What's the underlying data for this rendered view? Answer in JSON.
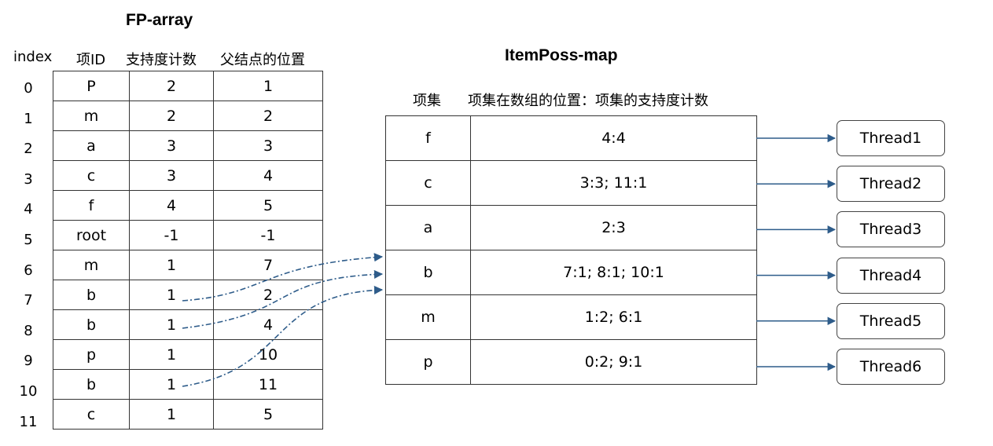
{
  "fp_array": {
    "title": "FP-array",
    "headers": [
      "index",
      "项ID",
      "支持度计数",
      "父结点的位置"
    ],
    "rows": [
      {
        "index": "0",
        "item": "P",
        "count": "2",
        "parent": "1"
      },
      {
        "index": "1",
        "item": "m",
        "count": "2",
        "parent": "2"
      },
      {
        "index": "2",
        "item": "a",
        "count": "3",
        "parent": "3"
      },
      {
        "index": "3",
        "item": "c",
        "count": "3",
        "parent": "4"
      },
      {
        "index": "4",
        "item": "f",
        "count": "4",
        "parent": "5"
      },
      {
        "index": "5",
        "item": "root",
        "count": "-1",
        "parent": "-1"
      },
      {
        "index": "6",
        "item": "m",
        "count": "1",
        "parent": "7"
      },
      {
        "index": "7",
        "item": "b",
        "count": "1",
        "parent": "2"
      },
      {
        "index": "8",
        "item": "b",
        "count": "1",
        "parent": "4"
      },
      {
        "index": "9",
        "item": "p",
        "count": "1",
        "parent": "10"
      },
      {
        "index": "10",
        "item": "b",
        "count": "1",
        "parent": "11"
      },
      {
        "index": "11",
        "item": "c",
        "count": "1",
        "parent": "5"
      }
    ]
  },
  "itemposs_map": {
    "title": "ItemPoss-map",
    "header_item": "项集",
    "header_positions": "项集在数组的位置：项集的支持度计数",
    "rows": [
      {
        "item": "f",
        "positions": "4:4",
        "thread": "Thread1"
      },
      {
        "item": "c",
        "positions": "3:3; 11:1",
        "thread": "Thread2"
      },
      {
        "item": "a",
        "positions": "2:3",
        "thread": "Thread3"
      },
      {
        "item": "b",
        "positions": "7:1; 8:1; 10:1",
        "thread": "Thread4"
      },
      {
        "item": "m",
        "positions": "1:2; 6:1",
        "thread": "Thread5"
      },
      {
        "item": "p",
        "positions": "0:2; 9:1",
        "thread": "Thread6"
      }
    ]
  },
  "colors": {
    "arrow": "#2e5c8a",
    "border": "#333333"
  }
}
